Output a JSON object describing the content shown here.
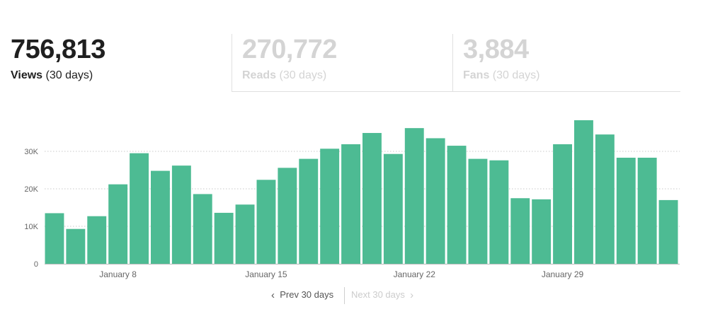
{
  "stats": {
    "views": {
      "value": "756,813",
      "label": "Views",
      "period": "(30 days)"
    },
    "reads": {
      "value": "270,772",
      "label": "Reads",
      "period": "(30 days)"
    },
    "fans": {
      "value": "3,884",
      "label": "Fans",
      "period": "(30 days)"
    }
  },
  "pager": {
    "prev_label": "Prev 30 days",
    "next_label": "Next 30 days",
    "prev_icon": "chevron-left-icon",
    "next_icon": "chevron-right-icon"
  },
  "colors": {
    "bar": "#4dbb93",
    "grid": "#c8c8c8",
    "axis": "#bdbdbd",
    "tick_text": "#666666"
  },
  "chart_data": {
    "type": "bar",
    "title": "",
    "xlabel": "",
    "ylabel": "",
    "values": [
      13500,
      9300,
      12700,
      21200,
      29500,
      24800,
      26200,
      18600,
      13600,
      15800,
      22400,
      25600,
      28000,
      30700,
      31900,
      34900,
      29300,
      36200,
      33500,
      31500,
      28000,
      27600,
      17500,
      17200,
      31900,
      38300,
      34500,
      28300,
      28300,
      17000
    ],
    "x_tick_labels": [
      {
        "index": 3,
        "label": "January 8"
      },
      {
        "index": 10,
        "label": "January 15"
      },
      {
        "index": 17,
        "label": "January 22"
      },
      {
        "index": 24,
        "label": "January 29"
      }
    ],
    "y_ticks": [
      {
        "value": 0,
        "label": "0"
      },
      {
        "value": 10000,
        "label": "10K"
      },
      {
        "value": 20000,
        "label": "20K"
      },
      {
        "value": 30000,
        "label": "30K"
      }
    ],
    "ylim": [
      0,
      40000
    ],
    "grid": true
  }
}
